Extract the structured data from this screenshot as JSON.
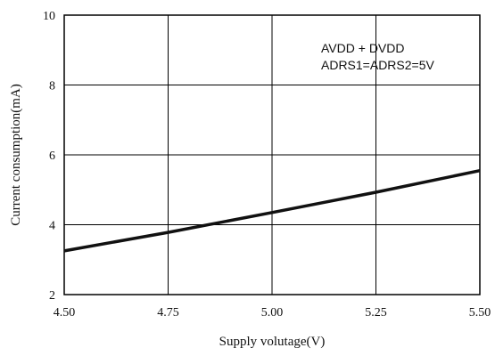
{
  "chart_data": {
    "type": "line",
    "x": [
      4.5,
      4.75,
      5.0,
      5.25,
      5.5
    ],
    "series": [
      {
        "name": "",
        "values": [
          3.25,
          3.78,
          4.35,
          4.93,
          5.55
        ]
      }
    ],
    "xlabel": "Supply volutage(V)",
    "ylabel": "Current consumption(mA)",
    "xlim": [
      4.5,
      5.5
    ],
    "ylim": [
      2,
      10
    ],
    "xticks": [
      "4.50",
      "4.75",
      "5.00",
      "5.25",
      "5.50"
    ],
    "yticks": [
      "2",
      "4",
      "6",
      "8",
      "10"
    ],
    "grid": true,
    "annotations": [
      "AVDD + DVDD",
      "ADRS1=ADRS2=5V"
    ],
    "colors": {
      "line": "#111111",
      "grid": "#000000",
      "frame": "#000000"
    }
  }
}
